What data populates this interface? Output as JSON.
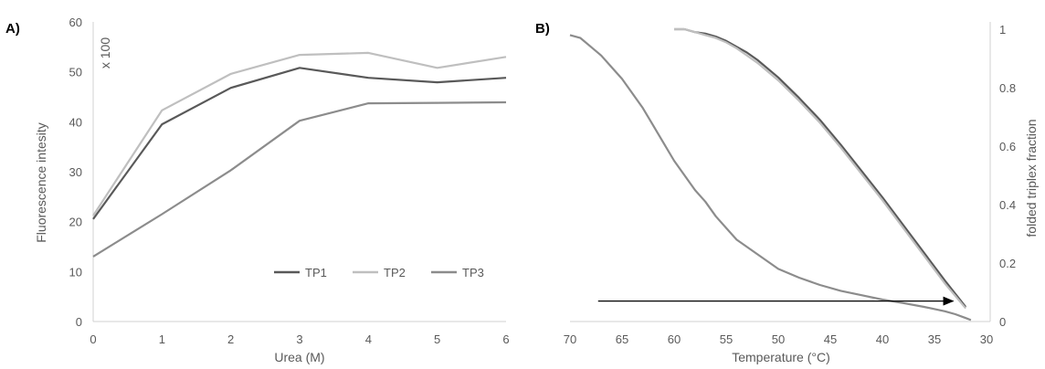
{
  "chart_data": [
    {
      "type": "line",
      "panel_label": "A)",
      "xlabel": "Urea (M)",
      "ylabel": "Fluorescence intesity",
      "ylabel_unit": "x 100",
      "xlim": [
        0,
        6
      ],
      "ylim": [
        0,
        60
      ],
      "x_ticks": [
        "0",
        "1",
        "2",
        "3",
        "4",
        "5",
        "6"
      ],
      "y_ticks": [
        "0",
        "10",
        "20",
        "30",
        "40",
        "50",
        "60"
      ],
      "grid": false,
      "legend_position": "bottom-right",
      "x": [
        0,
        1,
        2,
        3,
        4,
        5,
        6
      ],
      "series": [
        {
          "name": "TP1",
          "color": "#595959",
          "values": [
            20.5,
            39.5,
            46.8,
            50.8,
            48.8,
            47.9,
            48.8
          ]
        },
        {
          "name": "TP2",
          "color": "#bfbfbf",
          "values": [
            21.2,
            42.3,
            49.6,
            53.4,
            53.8,
            50.8,
            53.0
          ]
        },
        {
          "name": "TP3",
          "color": "#8c8c8c",
          "values": [
            13.0,
            21.5,
            30.3,
            40.2,
            43.7,
            43.8,
            43.9
          ]
        }
      ]
    },
    {
      "type": "line",
      "panel_label": "B)",
      "xlabel": "Temperature (°C)",
      "ylabel": "folded triplex fraction",
      "xlim": [
        70,
        30
      ],
      "ylim": [
        0,
        1
      ],
      "x_ticks": [
        "70",
        "65",
        "60",
        "55",
        "50",
        "45",
        "40",
        "35",
        "30"
      ],
      "y_ticks": [
        "0",
        "0.2",
        "0.4",
        "0.6",
        "0.8",
        "1"
      ],
      "y_axis_position": "right",
      "grid": false,
      "annotation": {
        "type": "arrow",
        "x_start": 67.3,
        "x_end": 33.2,
        "y": 0.07
      },
      "series": [
        {
          "color": "#8c8c8c",
          "points": [
            [
              70.0,
              0.98
            ],
            [
              69.0,
              0.97
            ],
            [
              68.0,
              0.94
            ],
            [
              67.0,
              0.91
            ],
            [
              66.0,
              0.87
            ],
            [
              65.0,
              0.83
            ],
            [
              64.0,
              0.78
            ],
            [
              63.0,
              0.73
            ],
            [
              62.0,
              0.67
            ],
            [
              61.0,
              0.61
            ],
            [
              60.0,
              0.55
            ],
            [
              59.0,
              0.5
            ],
            [
              58.0,
              0.45
            ],
            [
              57.0,
              0.41
            ],
            [
              56.0,
              0.36
            ],
            [
              55.0,
              0.32
            ],
            [
              54.0,
              0.28
            ],
            [
              53.0,
              0.255
            ],
            [
              52.0,
              0.23
            ],
            [
              51.0,
              0.205
            ],
            [
              50.0,
              0.18
            ],
            [
              48.0,
              0.15
            ],
            [
              46.0,
              0.125
            ],
            [
              44.0,
              0.105
            ],
            [
              42.0,
              0.09
            ],
            [
              40.0,
              0.075
            ],
            [
              38.0,
              0.063
            ],
            [
              36.0,
              0.05
            ],
            [
              34.0,
              0.035
            ],
            [
              33.0,
              0.025
            ],
            [
              32.0,
              0.012
            ],
            [
              31.5,
              0.005
            ]
          ]
        },
        {
          "color": "#595959",
          "points": [
            [
              60.0,
              1.0
            ],
            [
              59.0,
              1.0
            ],
            [
              58.0,
              0.99
            ],
            [
              57.0,
              0.985
            ],
            [
              56.0,
              0.975
            ],
            [
              55.0,
              0.96
            ],
            [
              54.0,
              0.94
            ],
            [
              53.0,
              0.92
            ],
            [
              52.0,
              0.895
            ],
            [
              51.0,
              0.865
            ],
            [
              50.0,
              0.835
            ],
            [
              48.0,
              0.765
            ],
            [
              46.0,
              0.69
            ],
            [
              44.0,
              0.605
            ],
            [
              42.0,
              0.515
            ],
            [
              40.0,
              0.425
            ],
            [
              38.0,
              0.33
            ],
            [
              36.0,
              0.235
            ],
            [
              34.0,
              0.14
            ],
            [
              32.0,
              0.05
            ]
          ]
        },
        {
          "color": "#bfbfbf",
          "points": [
            [
              60.0,
              1.0
            ],
            [
              59.0,
              1.0
            ],
            [
              58.0,
              0.99
            ],
            [
              57.0,
              0.98
            ],
            [
              56.0,
              0.97
            ],
            [
              55.0,
              0.955
            ],
            [
              54.0,
              0.935
            ],
            [
              53.0,
              0.91
            ],
            [
              52.0,
              0.885
            ],
            [
              51.0,
              0.855
            ],
            [
              50.0,
              0.825
            ],
            [
              48.0,
              0.755
            ],
            [
              46.0,
              0.68
            ],
            [
              44.0,
              0.595
            ],
            [
              42.0,
              0.505
            ],
            [
              40.0,
              0.415
            ],
            [
              38.0,
              0.32
            ],
            [
              36.0,
              0.225
            ],
            [
              34.0,
              0.13
            ],
            [
              32.0,
              0.045
            ]
          ]
        }
      ]
    }
  ]
}
